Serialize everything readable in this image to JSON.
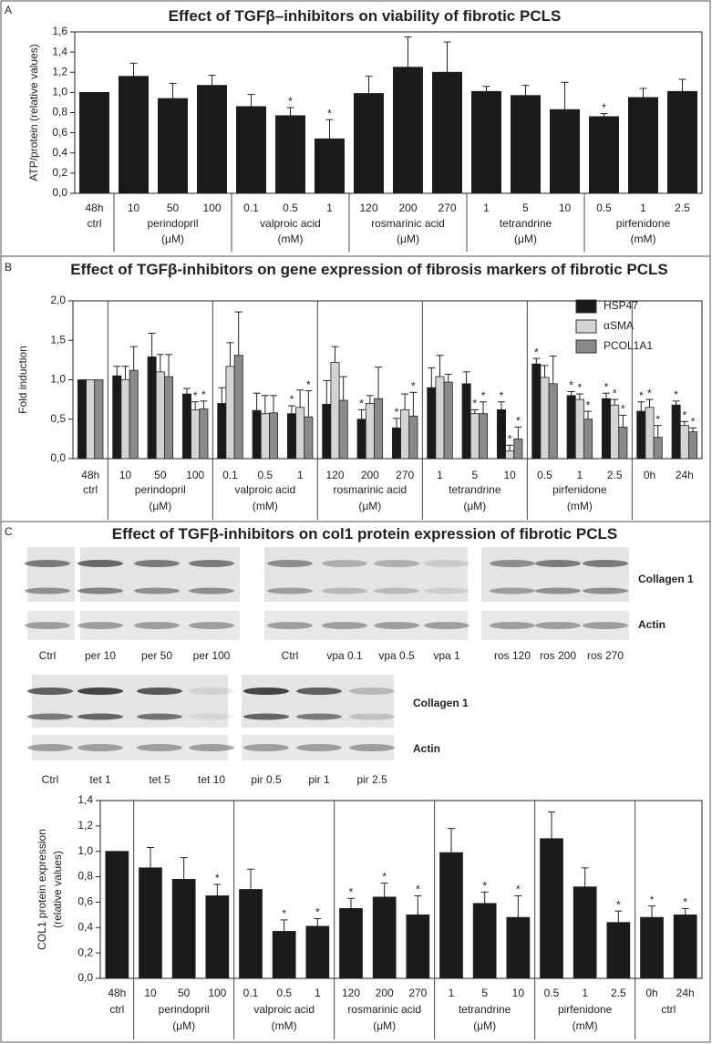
{
  "panels": [
    "A",
    "B",
    "C"
  ],
  "blots": {
    "title": "Effect of TGFβ-inhibitors on col1 protein expression of fibrotic PCLS",
    "rows": [
      {
        "lanes": [
          "Ctrl",
          "per 10",
          "per 50",
          "per 100",
          "Ctrl",
          "vpa 0.1",
          "vpa 0.5",
          "vpa 1",
          "ros 120",
          "ros 200",
          "ros 270"
        ],
        "band_labels": [
          "Collagen 1",
          "Actin"
        ]
      },
      {
        "lanes": [
          "Ctrl",
          "tet 1",
          "tet 5",
          "tet 10",
          "pir 0.5",
          "pir 1",
          "pir 2.5"
        ],
        "band_labels": [
          "Collagen 1",
          "Actin"
        ]
      }
    ]
  },
  "chart_data": [
    {
      "type": "bar",
      "title": "Effect of TGFβ–inhibitors on viability of fibrotic PCLS",
      "ylabel": "ATP/protein (relative values)",
      "color": "#1a1a1a",
      "ylim": [
        0,
        1.6
      ],
      "yticks": [
        {
          "value": 0,
          "label": "0,0"
        },
        {
          "value": 0.2,
          "label": "0,2"
        },
        {
          "value": 0.4,
          "label": "0,4"
        },
        {
          "value": 0.6,
          "label": "0,6"
        },
        {
          "value": 0.8,
          "label": "0,8"
        },
        {
          "value": 1.0,
          "label": "1,0"
        },
        {
          "value": 1.2,
          "label": "1,2"
        },
        {
          "value": 1.4,
          "label": "1,4"
        },
        {
          "value": 1.6,
          "label": "1,6"
        }
      ],
      "groups": [
        {
          "name": "ctrl",
          "categories": [
            "48h"
          ],
          "values": [
            1.0
          ],
          "errors": [
            null
          ],
          "marks": [
            null
          ]
        },
        {
          "name": "perindopril",
          "unit": "(μM)",
          "categories": [
            "10",
            "50",
            "100"
          ],
          "values": [
            1.16,
            0.94,
            1.07
          ],
          "errors": [
            0.13,
            0.15,
            0.1
          ],
          "marks": [
            null,
            null,
            null
          ]
        },
        {
          "name": "valproic acid",
          "unit": "(mM)",
          "categories": [
            "0.1",
            "0.5",
            "1"
          ],
          "values": [
            0.86,
            0.77,
            0.54
          ],
          "errors": [
            0.12,
            0.08,
            0.19
          ],
          "marks": [
            null,
            "*",
            "*"
          ]
        },
        {
          "name": "rosmarinic acid",
          "unit": "(μM)",
          "categories": [
            "120",
            "200",
            "270"
          ],
          "values": [
            0.99,
            1.25,
            1.2
          ],
          "errors": [
            0.17,
            0.3,
            0.3
          ],
          "marks": [
            null,
            null,
            null
          ]
        },
        {
          "name": "tetrandrine",
          "unit": "(μM)",
          "categories": [
            "1",
            "5",
            "10"
          ],
          "values": [
            1.01,
            0.97,
            0.83
          ],
          "errors": [
            0.05,
            0.1,
            0.27
          ],
          "marks": [
            null,
            null,
            null
          ]
        },
        {
          "name": "pirfenidone",
          "unit": "(mM)",
          "categories": [
            "0.5",
            "1",
            "2.5"
          ],
          "values": [
            0.76,
            0.95,
            1.01
          ],
          "errors": [
            0.03,
            0.09,
            0.12
          ],
          "marks": [
            "*",
            null,
            null
          ]
        }
      ]
    },
    {
      "type": "grouped-bar",
      "title": "Effect of TGFβ-inhibitors on gene expression of fibrosis markers of fibrotic PCLS",
      "ylabel": "Fold induction",
      "ylim": [
        0,
        2.0
      ],
      "yticks": [
        {
          "value": 0,
          "label": "0,0"
        },
        {
          "value": 0.5,
          "label": "0,5"
        },
        {
          "value": 1.0,
          "label": "1,0"
        },
        {
          "value": 1.5,
          "label": "1,5"
        },
        {
          "value": 2.0,
          "label": "2,0"
        }
      ],
      "legend": "top-right",
      "series": [
        {
          "name": "HSP47",
          "color": "#1a1a1a"
        },
        {
          "name": "αSMA",
          "color": "#d4d4d4"
        },
        {
          "name": "PCOL1A1",
          "color": "#8a8a8a"
        }
      ],
      "groups": [
        {
          "name": "ctrl",
          "categories": [
            "48h"
          ],
          "series": [
            {
              "values": [
                1.0
              ],
              "errors": [
                null
              ],
              "marks": [
                null
              ]
            },
            {
              "values": [
                1.0
              ],
              "errors": [
                null
              ],
              "marks": [
                null
              ]
            },
            {
              "values": [
                1.0
              ],
              "errors": [
                null
              ],
              "marks": [
                null
              ]
            }
          ]
        },
        {
          "name": "perindopril",
          "unit": "(μM)",
          "categories": [
            "10",
            "50",
            "100"
          ],
          "series": [
            {
              "values": [
                1.05,
                1.29,
                0.82
              ],
              "errors": [
                0.12,
                0.3,
                0.07
              ],
              "marks": [
                null,
                null,
                null
              ]
            },
            {
              "values": [
                1.0,
                1.1,
                0.62
              ],
              "errors": [
                0.17,
                0.22,
                0.1
              ],
              "marks": [
                null,
                null,
                "*"
              ]
            },
            {
              "values": [
                1.12,
                1.04,
                0.63
              ],
              "errors": [
                0.3,
                0.28,
                0.1
              ],
              "marks": [
                null,
                null,
                "*"
              ]
            }
          ]
        },
        {
          "name": "valproic acid",
          "unit": "(mM)",
          "categories": [
            "0.1",
            "0.5",
            "1"
          ],
          "series": [
            {
              "values": [
                0.7,
                0.61,
                0.57
              ],
              "errors": [
                0.2,
                0.22,
                0.1
              ],
              "marks": [
                null,
                null,
                "*"
              ]
            },
            {
              "values": [
                1.17,
                0.57,
                0.65
              ],
              "errors": [
                0.3,
                0.23,
                0.22
              ],
              "marks": [
                null,
                null,
                null
              ]
            },
            {
              "values": [
                1.31,
                0.58,
                0.53
              ],
              "errors": [
                0.55,
                0.22,
                0.33
              ],
              "marks": [
                null,
                null,
                "*"
              ]
            }
          ]
        },
        {
          "name": "rosmarinic acid",
          "unit": "(μM)",
          "categories": [
            "120",
            "200",
            "270"
          ],
          "series": [
            {
              "values": [
                0.69,
                0.5,
                0.39
              ],
              "errors": [
                0.3,
                0.12,
                0.12
              ],
              "marks": [
                null,
                "*",
                "*"
              ]
            },
            {
              "values": [
                1.22,
                0.7,
                0.62
              ],
              "errors": [
                0.2,
                0.1,
                0.2
              ],
              "marks": [
                null,
                null,
                null
              ]
            },
            {
              "values": [
                0.74,
                0.76,
                0.54
              ],
              "errors": [
                0.3,
                0.4,
                0.3
              ],
              "marks": [
                null,
                null,
                "*"
              ]
            }
          ]
        },
        {
          "name": "tetrandrine",
          "unit": "(μM)",
          "categories": [
            "1",
            "5",
            "10"
          ],
          "series": [
            {
              "values": [
                0.9,
                0.95,
                0.62
              ],
              "errors": [
                0.25,
                0.15,
                0.1
              ],
              "marks": [
                null,
                null,
                "*"
              ]
            },
            {
              "values": [
                1.04,
                0.57,
                0.1
              ],
              "errors": [
                0.27,
                0.05,
                0.07
              ],
              "marks": [
                null,
                "*",
                "*"
              ]
            },
            {
              "values": [
                0.97,
                0.57,
                0.25
              ],
              "errors": [
                0.1,
                0.15,
                0.15
              ],
              "marks": [
                null,
                "*",
                "*"
              ]
            }
          ]
        },
        {
          "name": "pirfenidone",
          "unit": "(mM)",
          "categories": [
            "0.5",
            "1",
            "2.5"
          ],
          "series": [
            {
              "values": [
                1.2,
                0.8,
                0.76
              ],
              "errors": [
                0.07,
                0.05,
                0.07
              ],
              "marks": [
                "*",
                "*",
                "*"
              ]
            },
            {
              "values": [
                1.03,
                0.75,
                0.68
              ],
              "errors": [
                0.15,
                0.07,
                0.07
              ],
              "marks": [
                null,
                "*",
                "*"
              ]
            },
            {
              "values": [
                0.95,
                0.5,
                0.4
              ],
              "errors": [
                0.35,
                0.1,
                0.15
              ],
              "marks": [
                null,
                "*",
                "*"
              ]
            }
          ]
        },
        {
          "categories": [
            "0h",
            "24h"
          ],
          "series": [
            {
              "values": [
                0.6,
                0.68
              ],
              "errors": [
                0.12,
                0.05
              ],
              "marks": [
                "*",
                "*"
              ]
            },
            {
              "values": [
                0.65,
                0.42
              ],
              "errors": [
                0.1,
                0.05
              ],
              "marks": [
                "*",
                "*"
              ]
            },
            {
              "values": [
                0.27,
                0.34
              ],
              "errors": [
                0.15,
                0.05
              ],
              "marks": [
                "*",
                "*"
              ]
            }
          ]
        }
      ]
    },
    {
      "type": "bar",
      "ylabel": [
        "COL1 protein expression",
        "(relative values)"
      ],
      "color": "#1a1a1a",
      "ylim": [
        0,
        1.4
      ],
      "yticks": [
        {
          "value": 0,
          "label": "0,0"
        },
        {
          "value": 0.2,
          "label": "0,2"
        },
        {
          "value": 0.4,
          "label": "0,4"
        },
        {
          "value": 0.6,
          "label": "0,6"
        },
        {
          "value": 0.8,
          "label": "0,8"
        },
        {
          "value": 1.0,
          "label": "1,0"
        },
        {
          "value": 1.2,
          "label": "1,2"
        },
        {
          "value": 1.4,
          "label": "1,4"
        }
      ],
      "groups": [
        {
          "name": "ctrl",
          "categories": [
            "48h"
          ],
          "values": [
            1.0
          ],
          "errors": [
            null
          ],
          "marks": [
            null
          ]
        },
        {
          "name": "perindopril",
          "unit": "(μM)",
          "categories": [
            "10",
            "50",
            "100"
          ],
          "values": [
            0.87,
            0.78,
            0.65
          ],
          "errors": [
            0.16,
            0.17,
            0.09
          ],
          "marks": [
            null,
            null,
            "*"
          ]
        },
        {
          "name": "valproic acid",
          "unit": "(mM)",
          "categories": [
            "0.1",
            "0.5",
            "1"
          ],
          "values": [
            0.7,
            0.37,
            0.41
          ],
          "errors": [
            0.16,
            0.09,
            0.06
          ],
          "marks": [
            null,
            "*",
            "*"
          ]
        },
        {
          "name": "rosmarinic acid",
          "unit": "(μM)",
          "categories": [
            "120",
            "200",
            "270"
          ],
          "values": [
            0.55,
            0.64,
            0.5
          ],
          "errors": [
            0.08,
            0.11,
            0.15
          ],
          "marks": [
            "*",
            "*",
            "*"
          ]
        },
        {
          "name": "tetrandrine",
          "unit": "(μM)",
          "categories": [
            "1",
            "5",
            "10"
          ],
          "values": [
            0.99,
            0.59,
            0.48
          ],
          "errors": [
            0.19,
            0.09,
            0.17
          ],
          "marks": [
            null,
            "*",
            "*"
          ]
        },
        {
          "name": "pirfenidone",
          "unit": "(mM)",
          "categories": [
            "0.5",
            "1",
            "2.5"
          ],
          "values": [
            1.1,
            0.72,
            0.44
          ],
          "errors": [
            0.21,
            0.15,
            0.09
          ],
          "marks": [
            null,
            null,
            "*"
          ]
        },
        {
          "name": "ctrl",
          "categories": [
            "0h",
            "24h"
          ],
          "values": [
            0.48,
            0.5
          ],
          "errors": [
            0.09,
            0.05
          ],
          "marks": [
            "*",
            "*"
          ]
        }
      ]
    }
  ]
}
